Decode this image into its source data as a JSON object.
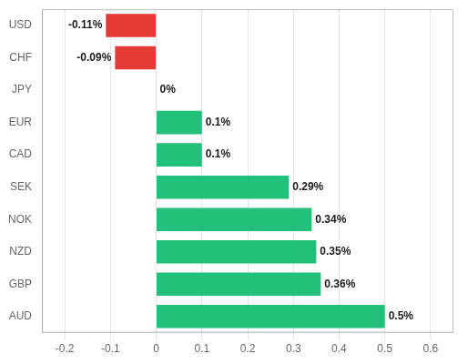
{
  "chart_data": {
    "type": "bar",
    "orientation": "horizontal",
    "categories": [
      "USD",
      "CHF",
      "JPY",
      "EUR",
      "CAD",
      "SEK",
      "NOK",
      "NZD",
      "GBP",
      "AUD"
    ],
    "values": [
      -0.11,
      -0.09,
      0.0,
      0.1,
      0.1,
      0.29,
      0.34,
      0.35,
      0.36,
      0.5
    ],
    "value_labels": [
      "-0.11%",
      "-0.09%",
      "0%",
      "0.1%",
      "0.1%",
      "0.29%",
      "0.34%",
      "0.35%",
      "0.36%",
      "0.5%"
    ],
    "colors": [
      "#e53935",
      "#e53935",
      null,
      "#22c07a",
      "#22c07a",
      "#22c07a",
      "#22c07a",
      "#22c07a",
      "#22c07a",
      "#22c07a"
    ],
    "xlim": [
      -0.25,
      0.65
    ],
    "xticks": [
      -0.2,
      -0.1,
      0,
      0.1,
      0.2,
      0.3,
      0.4,
      0.5,
      0.6
    ],
    "grid": true,
    "data_labels": true
  }
}
